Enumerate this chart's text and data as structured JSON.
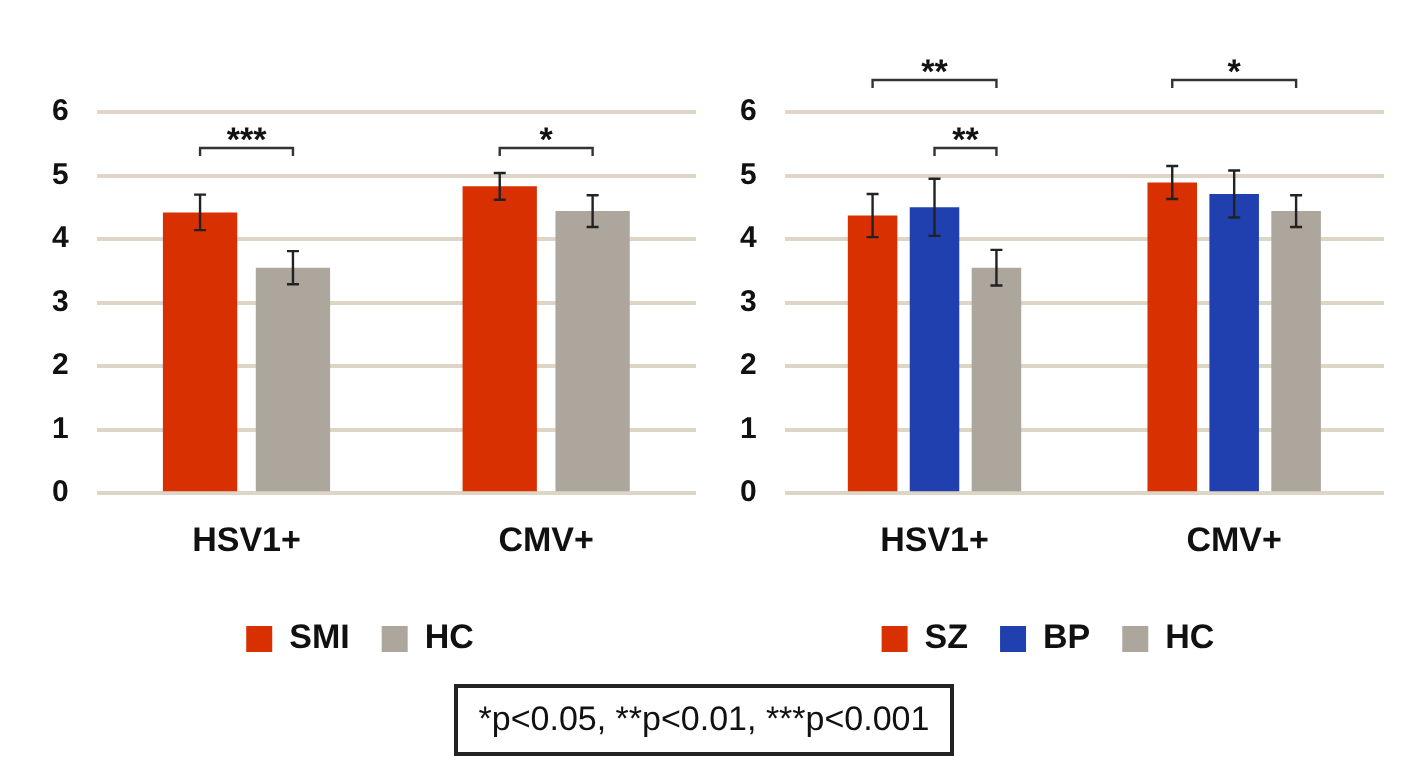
{
  "chart_data": [
    {
      "type": "bar",
      "categories": [
        "HSV1+",
        "CMV+"
      ],
      "series": [
        {
          "name": "SMI",
          "color": "#d83000",
          "values": [
            4.42,
            4.83
          ],
          "errors": [
            0.28,
            0.21
          ]
        },
        {
          "name": "HC",
          "color": "#aca69c",
          "values": [
            3.55,
            4.44
          ],
          "errors": [
            0.26,
            0.25
          ]
        }
      ],
      "ylim": [
        0,
        6
      ],
      "yticks": [
        0,
        1,
        2,
        3,
        4,
        5,
        6
      ],
      "grid": "y",
      "legend": "bottom",
      "annotations": [
        "***",
        "*"
      ]
    },
    {
      "type": "bar",
      "categories": [
        "HSV1+",
        "CMV+"
      ],
      "series": [
        {
          "name": "SZ",
          "color": "#d83000",
          "values": [
            4.37,
            4.89
          ],
          "errors": [
            0.34,
            0.26
          ]
        },
        {
          "name": "BP",
          "color": "#2040b0",
          "values": [
            4.5,
            4.71
          ],
          "errors": [
            0.45,
            0.37
          ]
        },
        {
          "name": "HC",
          "color": "#aca69c",
          "values": [
            3.55,
            4.44
          ],
          "errors": [
            0.28,
            0.25
          ]
        }
      ],
      "ylim": [
        0,
        6
      ],
      "yticks": [
        0,
        1,
        2,
        3,
        4,
        5,
        6
      ],
      "grid": "y",
      "legend": "bottom",
      "annotations": [
        "**",
        "**",
        "*"
      ]
    },
    {
      "type": "other",
      "annotations": [
        "*p<0.05, **p<0.01, ***p<0.001"
      ]
    }
  ]
}
